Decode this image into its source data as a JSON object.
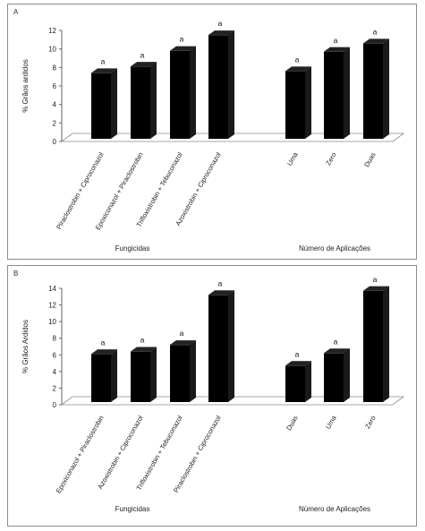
{
  "chart_data": [
    {
      "type": "bar",
      "panel_label": "A",
      "ylabel": "% Grãos ardidos",
      "ylim": [
        0,
        12
      ],
      "yticks": [
        0,
        2,
        4,
        6,
        8,
        10,
        12
      ],
      "grid": false,
      "groups": [
        {
          "name": "Fungicidas",
          "categories": [
            "Piraclostrobin + Ciproconazol",
            "Epoxiconazol + Piraclostrobin",
            "Trifloxistrobin + Tebuconazol",
            "Azoxistrobin + Ciproconazol"
          ],
          "values": [
            7.4,
            8.1,
            9.8,
            11.5
          ],
          "labels": [
            "a",
            "a",
            "a",
            "a"
          ]
        },
        {
          "name": "Número de Aplicações",
          "categories": [
            "Uma",
            "Zero",
            "Duas"
          ],
          "values": [
            7.6,
            9.7,
            10.6
          ],
          "labels": [
            "a",
            "a",
            "a"
          ]
        }
      ]
    },
    {
      "type": "bar",
      "panel_label": "B",
      "ylabel": "% Grãos Ardidos",
      "ylim": [
        0,
        14
      ],
      "yticks": [
        0,
        2,
        4,
        6,
        8,
        10,
        12,
        14
      ],
      "grid": false,
      "groups": [
        {
          "name": "Fungicidas",
          "categories": [
            "Epoxiconazol + Piraclostrobin",
            "Azoxistrobin + Ciproconazol",
            "Trifloxistrobin + Tebuconazol",
            "Piraclostrobin + Ciproconazol"
          ],
          "values": [
            6.1,
            6.4,
            7.2,
            13.2
          ],
          "labels": [
            "a",
            "a",
            "a",
            "a"
          ]
        },
        {
          "name": "Número de Aplicações",
          "categories": [
            "Duas",
            "Uma",
            "Zero"
          ],
          "values": [
            4.7,
            6.2,
            13.7
          ],
          "labels": [
            "a",
            "a",
            "a"
          ]
        }
      ]
    }
  ]
}
